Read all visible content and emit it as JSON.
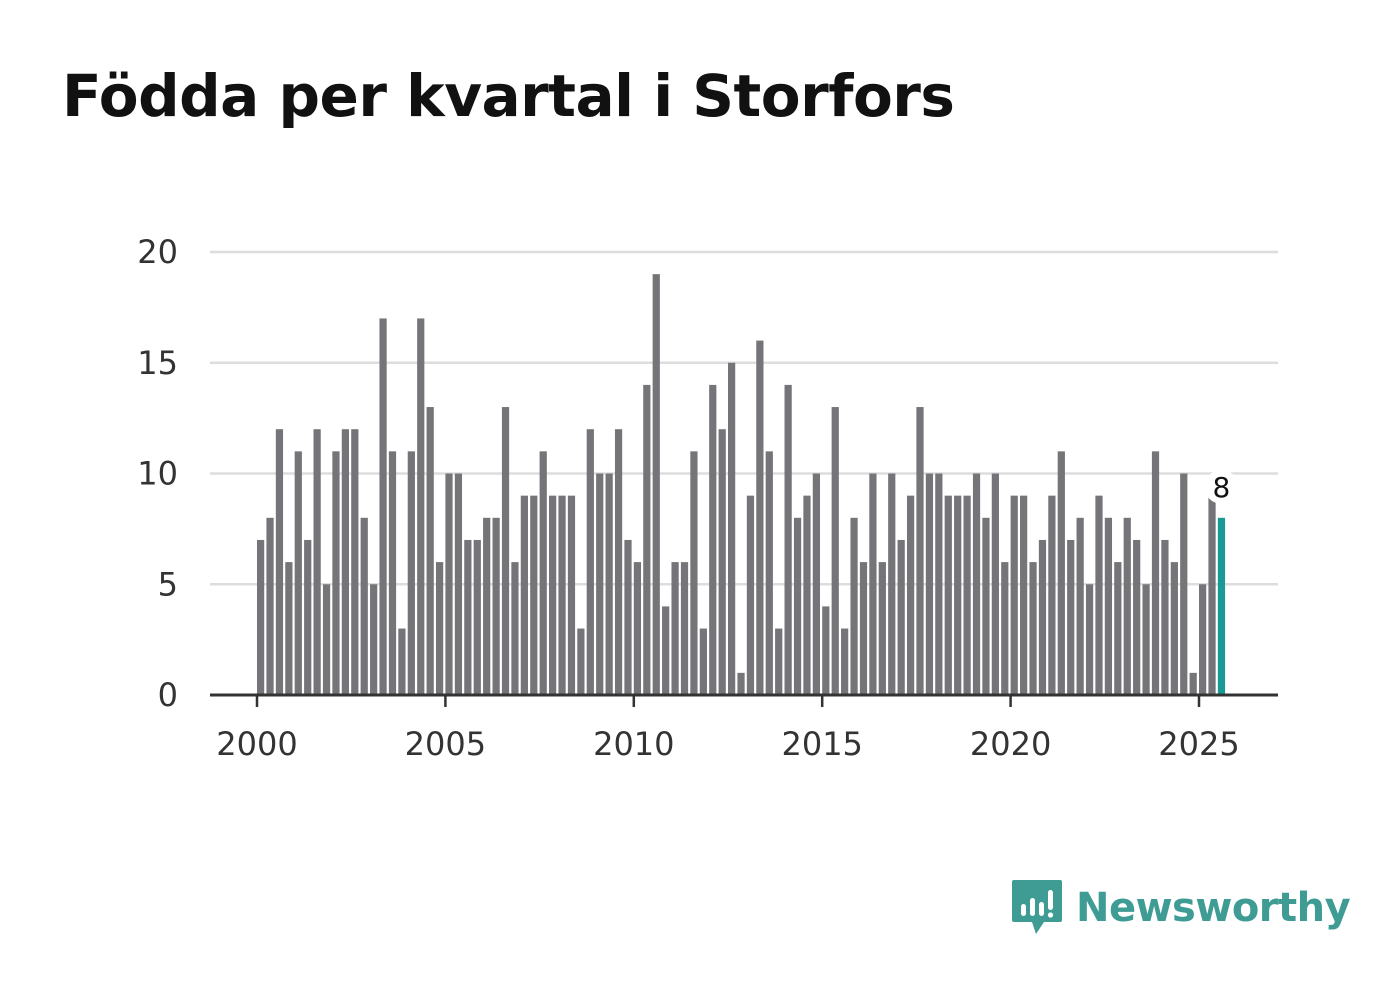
{
  "chart_data": {
    "type": "bar",
    "title": "Födda per kvartal i Storfors",
    "xlabel": "",
    "ylabel": "",
    "ylim": [
      0,
      20
    ],
    "yticks": [
      0,
      5,
      10,
      15,
      20
    ],
    "xticks": [
      "2000",
      "2005",
      "2010",
      "2015",
      "2020",
      "2025"
    ],
    "start_year": 2000,
    "quarters_per_year": 4,
    "values": [
      7,
      8,
      12,
      6,
      11,
      7,
      12,
      5,
      11,
      12,
      12,
      8,
      5,
      17,
      11,
      3,
      11,
      17,
      13,
      6,
      10,
      10,
      7,
      7,
      8,
      8,
      13,
      6,
      9,
      9,
      11,
      9,
      9,
      9,
      3,
      12,
      10,
      10,
      12,
      7,
      6,
      14,
      19,
      4,
      6,
      6,
      11,
      3,
      14,
      12,
      15,
      1,
      9,
      16,
      11,
      3,
      14,
      8,
      9,
      10,
      4,
      13,
      3,
      8,
      6,
      10,
      6,
      10,
      7,
      9,
      13,
      10,
      10,
      9,
      9,
      9,
      10,
      8,
      10,
      6,
      9,
      9,
      6,
      7,
      9,
      11,
      7,
      8,
      5,
      9,
      8,
      6,
      8,
      7,
      5,
      11,
      7,
      6,
      10,
      1,
      5,
      9,
      8
    ],
    "highlight_index": 102,
    "highlight_label": "8",
    "colors": {
      "bar": "#757478",
      "highlight": "#1a9a94",
      "grid": "#dddddd",
      "axis": "#333333"
    }
  },
  "logo": {
    "name": "Newsworthy",
    "icon": "bar-chart-speech-bubble-icon",
    "color": "#3e9c94"
  }
}
